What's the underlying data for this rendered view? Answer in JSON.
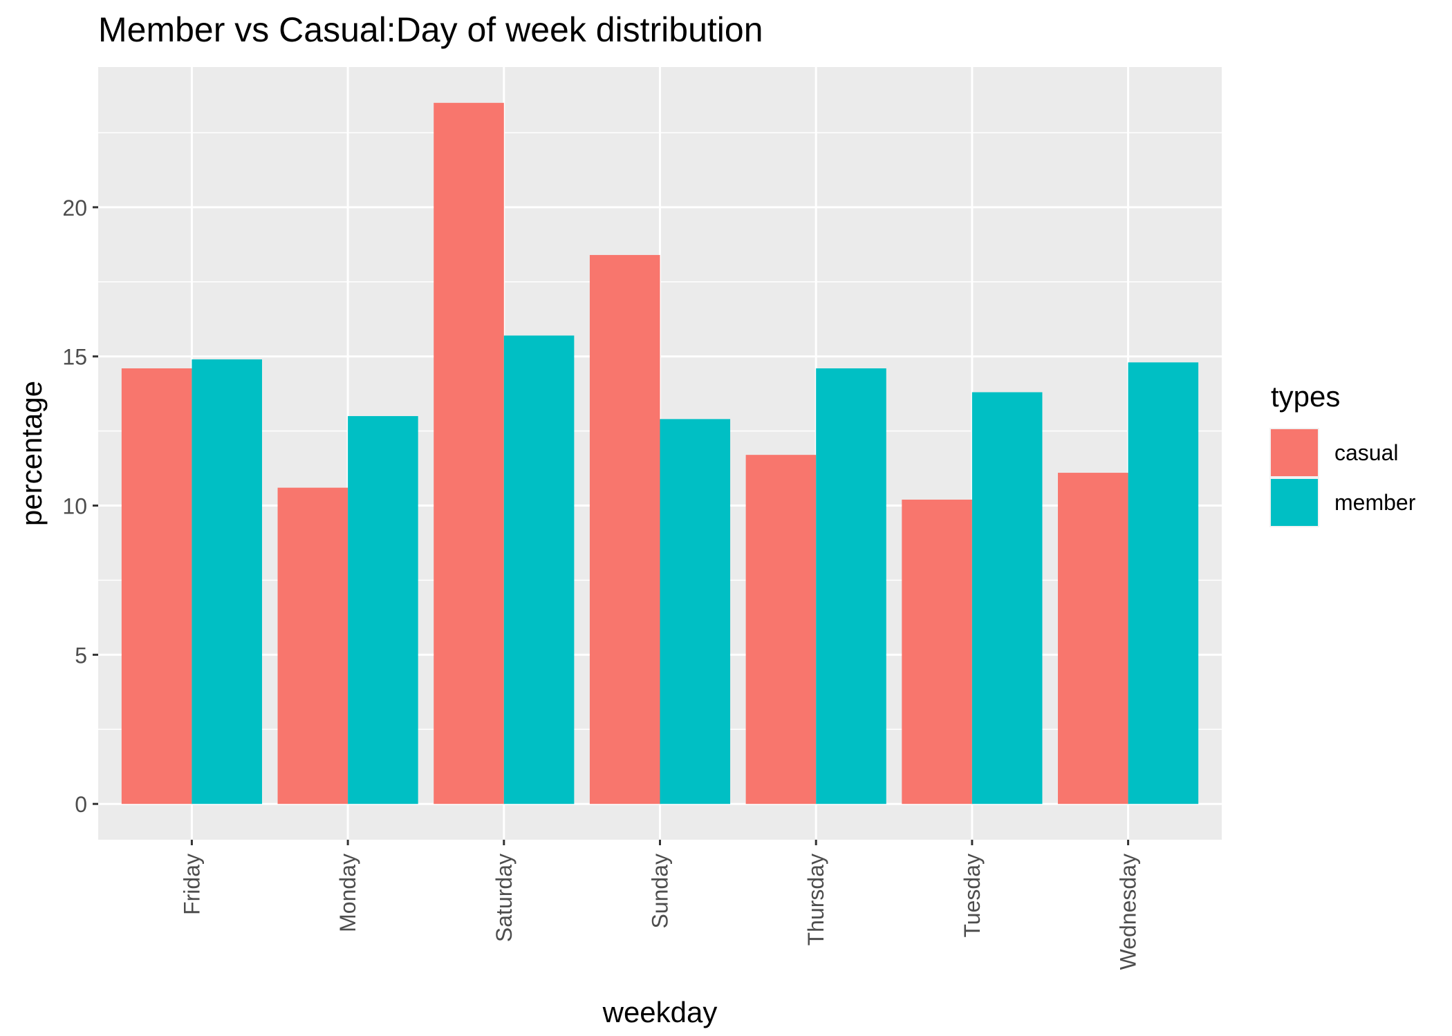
{
  "chart_data": {
    "type": "bar",
    "title": "Member vs Casual:Day of week distribution",
    "xlabel": "weekday",
    "ylabel": "percentage",
    "categories": [
      "Friday",
      "Monday",
      "Saturday",
      "Sunday",
      "Thursday",
      "Tuesday",
      "Wednesday"
    ],
    "series": [
      {
        "name": "casual",
        "color": "#F8766D",
        "values": [
          14.6,
          10.6,
          23.5,
          18.4,
          11.7,
          10.2,
          11.1
        ]
      },
      {
        "name": "member",
        "color": "#00BFC4",
        "values": [
          14.9,
          13.0,
          15.7,
          12.9,
          14.6,
          13.8,
          14.8
        ]
      }
    ],
    "ylim": [
      -1.2,
      24.7
    ],
    "yticks": [
      0,
      5,
      10,
      15,
      20
    ],
    "ytick_labels": [
      "0",
      "5",
      "10",
      "15",
      "20"
    ],
    "grid": true,
    "panel_background": "#EBEBEB",
    "legend": {
      "title": "types",
      "position": "right",
      "entries": [
        "casual",
        "member"
      ]
    }
  }
}
